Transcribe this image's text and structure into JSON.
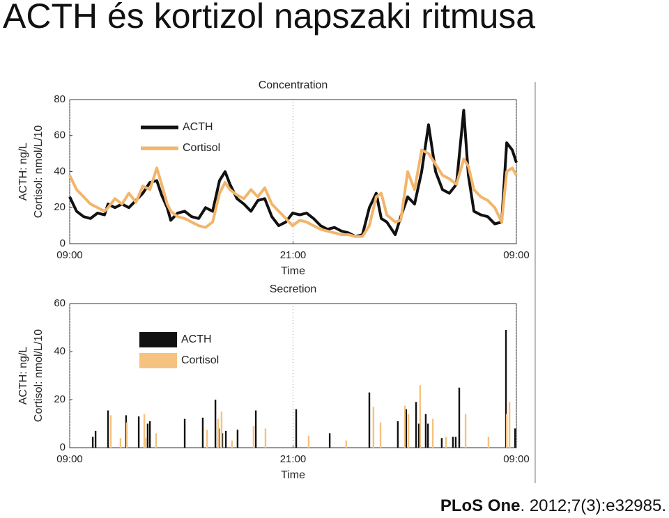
{
  "page_title": "ACTH és kortizol napszaki ritmusa",
  "citation": {
    "journal": "PLoS One",
    "rest": ". 2012;7(3):e32985."
  },
  "chart_data": [
    {
      "type": "line",
      "title": "Concentration",
      "y_label": [
        "ACTH: ng/L",
        "Cortisol: nmol/L/10"
      ],
      "x_label": "Time",
      "xlim": [
        0,
        24
      ],
      "xticks": [
        {
          "value": 0,
          "label": "09:00"
        },
        {
          "value": 12,
          "label": "21:00"
        },
        {
          "value": 24,
          "label": "09:00"
        }
      ],
      "ylim": [
        0,
        80
      ],
      "yticks": [
        0,
        20,
        40,
        60,
        80
      ],
      "xgrid": true,
      "legend": "upper left",
      "x": [
        0,
        0.37,
        0.75,
        1.12,
        1.5,
        1.87,
        2.06,
        2.43,
        2.81,
        3.18,
        3.56,
        3.93,
        4.31,
        4.68,
        4.94,
        5.24,
        5.43,
        5.8,
        6.18,
        6.55,
        6.93,
        7.3,
        7.68,
        8.05,
        8.35,
        8.61,
        8.99,
        9.36,
        9.74,
        10.11,
        10.48,
        10.86,
        11.23,
        11.61,
        11.98,
        12.36,
        12.73,
        13.1,
        13.48,
        13.85,
        14.23,
        14.6,
        14.98,
        15.35,
        15.73,
        16.1,
        16.47,
        16.74,
        17.04,
        17.49,
        17.79,
        18.16,
        18.53,
        18.91,
        19.28,
        19.66,
        20.03,
        20.4,
        20.78,
        21.17,
        21.42,
        21.72,
        22.09,
        22.46,
        22.84,
        23.21,
        23.48,
        23.78,
        24
      ],
      "series": [
        {
          "name": "ACTH",
          "color": "#111111",
          "values": [
            26,
            18,
            15,
            14,
            17,
            16,
            22,
            20,
            22,
            20,
            24,
            28,
            34,
            35,
            27,
            20,
            13,
            17,
            18,
            15,
            14,
            20,
            18,
            35,
            40,
            33,
            25,
            22,
            18,
            24,
            25,
            15,
            10,
            12,
            17,
            16,
            17,
            14,
            10,
            8,
            9,
            7,
            6,
            4,
            5,
            20,
            28,
            14,
            12,
            5,
            15,
            26,
            22,
            40,
            66,
            40,
            30,
            28,
            33,
            74,
            38,
            18,
            16,
            15,
            11,
            12,
            56,
            52,
            45
          ]
        },
        {
          "name": "Cortisol",
          "color": "#f2b56b",
          "values": [
            38,
            30,
            26,
            22,
            20,
            18,
            20,
            25,
            22,
            28,
            23,
            32,
            30,
            42,
            33,
            22,
            18,
            15,
            14,
            12,
            10,
            9,
            12,
            28,
            34,
            30,
            27,
            25,
            30,
            26,
            31,
            22,
            18,
            14,
            10,
            13,
            12,
            10,
            8,
            7,
            6,
            5,
            5,
            4,
            4,
            10,
            26,
            28,
            16,
            12,
            13,
            40,
            30,
            52,
            50,
            44,
            38,
            36,
            33,
            47,
            43,
            30,
            26,
            24,
            20,
            12,
            40,
            42,
            38
          ]
        }
      ]
    },
    {
      "type": "impulse",
      "title": "Secretion",
      "y_label": [
        "ACTH: ng/L",
        "Cortisol: nmol/L/10"
      ],
      "x_label": "Time",
      "xlim": [
        0,
        24
      ],
      "xticks": [
        {
          "value": 0,
          "label": "09:00"
        },
        {
          "value": 12,
          "label": "21:00"
        },
        {
          "value": 24,
          "label": "09:00"
        }
      ],
      "ylim": [
        0,
        60
      ],
      "yticks": [
        0,
        20,
        40,
        60
      ],
      "xgrid": true,
      "legend": "upper left",
      "series": [
        {
          "name": "ACTH",
          "color": "#111111",
          "x": [
            1.24,
            1.39,
            2.06,
            3.03,
            3.71,
            4.19,
            4.31,
            6.18,
            7.15,
            7.83,
            8.01,
            8.2,
            8.39,
            9.02,
            10,
            12.17,
            13.97,
            16.1,
            17.63,
            18.08,
            18.61,
            18.76,
            19.13,
            19.25,
            19.99,
            20.59,
            20.74,
            20.93,
            23.44,
            23.93
          ],
          "values": [
            4.5,
            7,
            15.5,
            13.5,
            13,
            10,
            11,
            12,
            12.5,
            20,
            8,
            6,
            7,
            7.5,
            15.5,
            16,
            6,
            23,
            11,
            16,
            19,
            10,
            14,
            10,
            4,
            4.5,
            4.5,
            25,
            49,
            8
          ]
        },
        {
          "name": "Cortisol",
          "color": "#f5c27f",
          "x": [
            2.21,
            2.73,
            3.07,
            4.01,
            4.08,
            4.64,
            7.38,
            7.98,
            8.16,
            8.72,
            9.88,
            10.52,
            12.84,
            14.86,
            16.32,
            16.7,
            18.01,
            18.2,
            18.83,
            19.51,
            20.22,
            21.27,
            22.5,
            23.48,
            23.63
          ],
          "values": [
            13.5,
            4,
            10.5,
            14,
            4,
            6,
            7.5,
            12,
            15,
            3,
            9,
            8,
            5,
            3,
            17,
            10.5,
            17.5,
            14,
            26,
            12,
            4.5,
            14,
            4.5,
            14,
            19
          ]
        }
      ]
    }
  ]
}
